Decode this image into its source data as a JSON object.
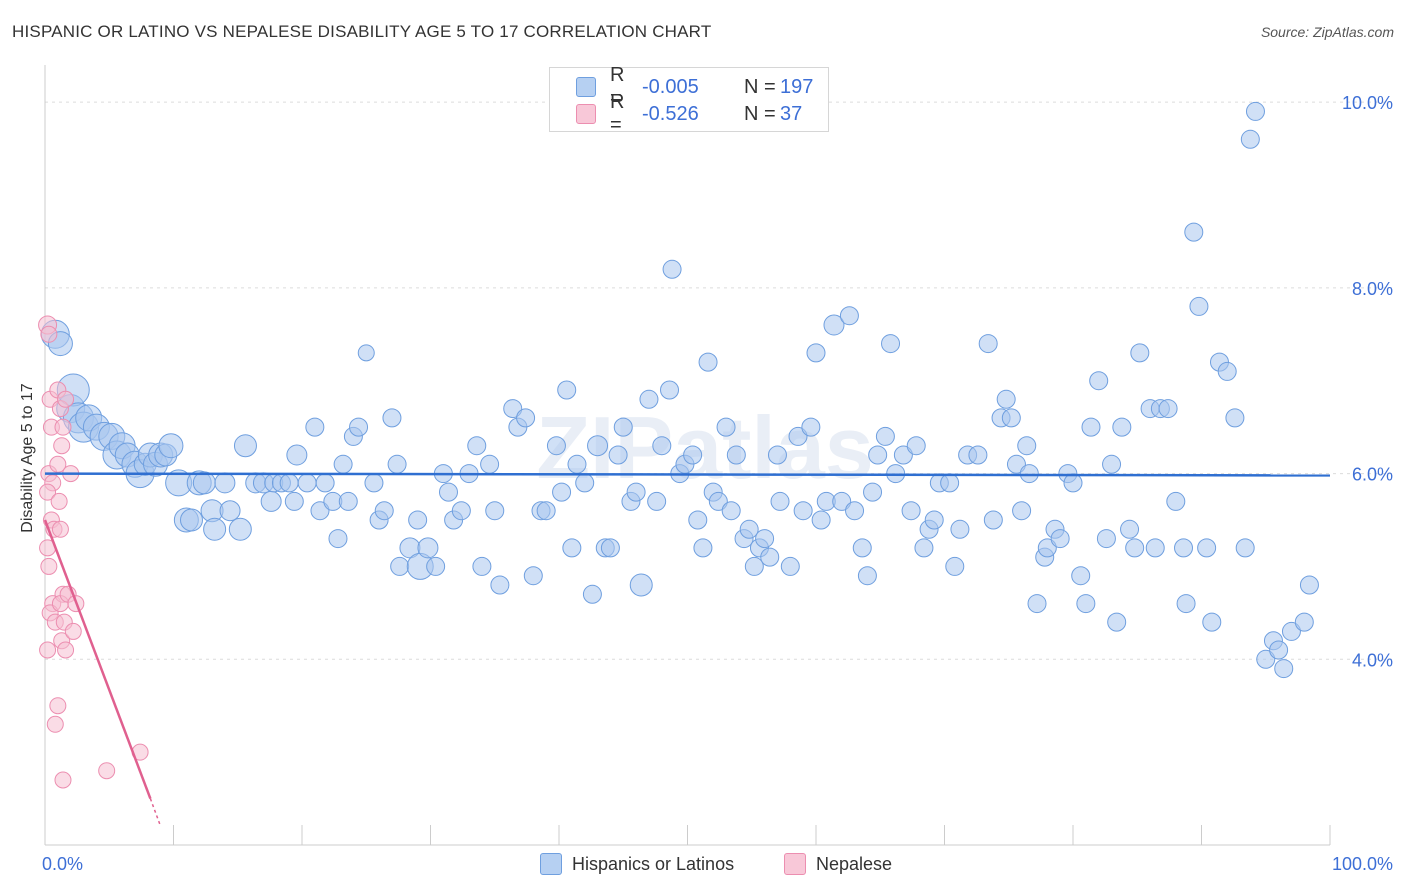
{
  "title": "HISPANIC OR LATINO VS NEPALESE DISABILITY AGE 5 TO 17 CORRELATION CHART",
  "source": "Source: ZipAtlas.com",
  "watermark": "ZIPatlas",
  "legend": {
    "rows": [
      {
        "r_label": "R =",
        "r_value": "-0.005",
        "n_label": "N =",
        "n_value": "197"
      },
      {
        "r_label": "R =",
        "r_value": "-0.526",
        "n_label": "N =",
        "n_value": "37"
      }
    ]
  },
  "bottom_legend": [
    "Hispanics or Latinos",
    "Nepalese"
  ],
  "colors": {
    "blue_fill": "#a9c6ee",
    "blue_stroke": "#6f9fdf",
    "blue_line": "#2f6fd1",
    "pink_fill": "#f6c0d2",
    "pink_stroke": "#ec8eb0",
    "pink_line": "#e0608f",
    "axis_label": "#3d6fd6",
    "grid": "#dcdcdc"
  },
  "chart_data": {
    "type": "scatter",
    "title": "HISPANIC OR LATINO VS NEPALESE DISABILITY AGE 5 TO 17 CORRELATION CHART",
    "xlabel": "",
    "ylabel": "Disability Age 5 to 17",
    "xlim": [
      0,
      100
    ],
    "ylim": [
      2.0,
      10.4
    ],
    "x_tick_labels": [
      "0.0%",
      "100.0%"
    ],
    "y_ticks": [
      4.0,
      6.0,
      8.0,
      10.0
    ],
    "y_tick_labels": [
      "4.0%",
      "6.0%",
      "8.0%",
      "10.0%"
    ],
    "grid": true,
    "legend_position": "top-center",
    "trend_lines": [
      {
        "series": "Hispanics or Latinos",
        "x": [
          0,
          100
        ],
        "y": [
          6.0,
          5.98
        ]
      },
      {
        "series": "Nepalese",
        "x": [
          0,
          8.2
        ],
        "y": [
          5.5,
          2.5
        ],
        "dashed_extension_x": [
          8.2,
          9.0
        ],
        "dashed_extension_y": [
          2.5,
          2.2
        ]
      }
    ],
    "series": [
      {
        "name": "Hispanics or Latinos",
        "points": [
          [
            0.8,
            7.5,
            14
          ],
          [
            1.2,
            7.4,
            12
          ],
          [
            2.0,
            6.7,
            14
          ],
          [
            2.2,
            6.9,
            16
          ],
          [
            2.6,
            6.6,
            15
          ],
          [
            3.0,
            6.5,
            15
          ],
          [
            3.4,
            6.6,
            13
          ],
          [
            4.0,
            6.5,
            13
          ],
          [
            4.6,
            6.4,
            14
          ],
          [
            5.2,
            6.4,
            13
          ],
          [
            5.6,
            6.2,
            14
          ],
          [
            6.0,
            6.3,
            13
          ],
          [
            6.4,
            6.2,
            12
          ],
          [
            7.0,
            6.1,
            13
          ],
          [
            7.4,
            6.0,
            14
          ],
          [
            7.8,
            6.1,
            11
          ],
          [
            8.2,
            6.2,
            12
          ],
          [
            8.6,
            6.1,
            12
          ],
          [
            9.0,
            6.2,
            12
          ],
          [
            9.4,
            6.2,
            11
          ],
          [
            9.8,
            6.3,
            12
          ],
          [
            10.4,
            5.9,
            13
          ],
          [
            11.0,
            5.5,
            12
          ],
          [
            11.4,
            5.5,
            11
          ],
          [
            12.0,
            5.9,
            12
          ],
          [
            12.4,
            5.9,
            11
          ],
          [
            13.0,
            5.6,
            11
          ],
          [
            13.2,
            5.4,
            11
          ],
          [
            14.0,
            5.9,
            10
          ],
          [
            14.4,
            5.6,
            10
          ],
          [
            15.2,
            5.4,
            11
          ],
          [
            15.6,
            6.3,
            11
          ],
          [
            16.4,
            5.9,
            10
          ],
          [
            17.0,
            5.9,
            10
          ],
          [
            17.6,
            5.7,
            10
          ],
          [
            17.8,
            5.9,
            9
          ],
          [
            18.4,
            5.9,
            9
          ],
          [
            19.0,
            5.9,
            9
          ],
          [
            19.4,
            5.7,
            9
          ],
          [
            19.6,
            6.2,
            10
          ],
          [
            20.4,
            5.9,
            9
          ],
          [
            21.0,
            6.5,
            9
          ],
          [
            21.4,
            5.6,
            9
          ],
          [
            21.8,
            5.9,
            9
          ],
          [
            22.4,
            5.7,
            9
          ],
          [
            22.8,
            5.3,
            9
          ],
          [
            23.2,
            6.1,
            9
          ],
          [
            23.6,
            5.7,
            9
          ],
          [
            24.0,
            6.4,
            9
          ],
          [
            24.4,
            6.5,
            9
          ],
          [
            25.0,
            7.3,
            8
          ],
          [
            25.6,
            5.9,
            9
          ],
          [
            26.0,
            5.5,
            9
          ],
          [
            26.4,
            5.6,
            9
          ],
          [
            27.0,
            6.6,
            9
          ],
          [
            27.4,
            6.1,
            9
          ],
          [
            27.6,
            5.0,
            9
          ],
          [
            28.4,
            5.2,
            10
          ],
          [
            29.0,
            5.5,
            9
          ],
          [
            29.2,
            5.0,
            13
          ],
          [
            29.8,
            5.2,
            10
          ],
          [
            30.4,
            5.0,
            9
          ],
          [
            31.0,
            6.0,
            9
          ],
          [
            31.4,
            5.8,
            9
          ],
          [
            31.8,
            5.5,
            9
          ],
          [
            32.4,
            5.6,
            9
          ],
          [
            33.0,
            6.0,
            9
          ],
          [
            33.6,
            6.3,
            9
          ],
          [
            34.0,
            5.0,
            9
          ],
          [
            34.6,
            6.1,
            9
          ],
          [
            35.0,
            5.6,
            9
          ],
          [
            35.4,
            4.8,
            9
          ],
          [
            36.4,
            6.7,
            9
          ],
          [
            36.8,
            6.5,
            9
          ],
          [
            37.4,
            6.6,
            9
          ],
          [
            38.0,
            4.9,
            9
          ],
          [
            38.6,
            5.6,
            9
          ],
          [
            39.0,
            5.6,
            9
          ],
          [
            39.8,
            6.3,
            9
          ],
          [
            40.2,
            5.8,
            9
          ],
          [
            40.6,
            6.9,
            9
          ],
          [
            41.0,
            5.2,
            9
          ],
          [
            41.4,
            6.1,
            9
          ],
          [
            42.0,
            5.9,
            9
          ],
          [
            42.6,
            4.7,
            9
          ],
          [
            43.0,
            6.3,
            10
          ],
          [
            43.6,
            5.2,
            9
          ],
          [
            44.0,
            5.2,
            9
          ],
          [
            44.6,
            6.2,
            9
          ],
          [
            45.0,
            6.5,
            9
          ],
          [
            45.6,
            5.7,
            9
          ],
          [
            46.0,
            5.8,
            9
          ],
          [
            46.4,
            4.8,
            11
          ],
          [
            47.0,
            6.8,
            9
          ],
          [
            47.6,
            5.7,
            9
          ],
          [
            48.0,
            6.3,
            9
          ],
          [
            48.6,
            6.9,
            9
          ],
          [
            48.8,
            8.2,
            9
          ],
          [
            49.4,
            6.0,
            9
          ],
          [
            49.8,
            6.1,
            9
          ],
          [
            50.4,
            6.2,
            9
          ],
          [
            50.8,
            5.5,
            9
          ],
          [
            51.2,
            5.2,
            9
          ],
          [
            51.6,
            7.2,
            9
          ],
          [
            52.0,
            5.8,
            9
          ],
          [
            52.4,
            5.7,
            9
          ],
          [
            53.0,
            6.5,
            9
          ],
          [
            53.4,
            5.6,
            9
          ],
          [
            53.8,
            6.2,
            9
          ],
          [
            54.4,
            5.3,
            9
          ],
          [
            54.8,
            5.4,
            9
          ],
          [
            55.2,
            5.0,
            9
          ],
          [
            55.6,
            5.2,
            9
          ],
          [
            56.0,
            5.3,
            9
          ],
          [
            56.4,
            5.1,
            9
          ],
          [
            57.0,
            6.2,
            9
          ],
          [
            57.2,
            5.7,
            9
          ],
          [
            58.0,
            5.0,
            9
          ],
          [
            58.6,
            6.4,
            9
          ],
          [
            59.0,
            5.6,
            9
          ],
          [
            59.6,
            6.5,
            9
          ],
          [
            60.0,
            7.3,
            9
          ],
          [
            60.4,
            5.5,
            9
          ],
          [
            60.8,
            5.7,
            9
          ],
          [
            61.4,
            7.6,
            10
          ],
          [
            62.0,
            5.7,
            9
          ],
          [
            62.6,
            7.7,
            9
          ],
          [
            63.0,
            5.6,
            9
          ],
          [
            63.6,
            5.2,
            9
          ],
          [
            64.0,
            4.9,
            9
          ],
          [
            64.4,
            5.8,
            9
          ],
          [
            64.8,
            6.2,
            9
          ],
          [
            65.4,
            6.4,
            9
          ],
          [
            65.8,
            7.4,
            9
          ],
          [
            66.2,
            6.0,
            9
          ],
          [
            66.8,
            6.2,
            9
          ],
          [
            67.4,
            5.6,
            9
          ],
          [
            67.8,
            6.3,
            9
          ],
          [
            68.4,
            5.2,
            9
          ],
          [
            68.8,
            5.4,
            9
          ],
          [
            69.2,
            5.5,
            9
          ],
          [
            69.6,
            5.9,
            9
          ],
          [
            70.4,
            5.9,
            9
          ],
          [
            70.8,
            5.0,
            9
          ],
          [
            71.2,
            5.4,
            9
          ],
          [
            71.8,
            6.2,
            9
          ],
          [
            72.6,
            6.2,
            9
          ],
          [
            73.4,
            7.4,
            9
          ],
          [
            73.8,
            5.5,
            9
          ],
          [
            74.4,
            6.6,
            9
          ],
          [
            74.8,
            6.8,
            9
          ],
          [
            75.2,
            6.6,
            9
          ],
          [
            75.6,
            6.1,
            9
          ],
          [
            76.0,
            5.6,
            9
          ],
          [
            76.4,
            6.3,
            9
          ],
          [
            76.6,
            6.0,
            9
          ],
          [
            77.2,
            4.6,
            9
          ],
          [
            77.8,
            5.1,
            9
          ],
          [
            78.0,
            5.2,
            9
          ],
          [
            78.6,
            5.4,
            9
          ],
          [
            79.0,
            5.3,
            9
          ],
          [
            79.6,
            6.0,
            9
          ],
          [
            80.0,
            5.9,
            9
          ],
          [
            80.6,
            4.9,
            9
          ],
          [
            81.0,
            4.6,
            9
          ],
          [
            81.4,
            6.5,
            9
          ],
          [
            82.0,
            7.0,
            9
          ],
          [
            82.6,
            5.3,
            9
          ],
          [
            83.0,
            6.1,
            9
          ],
          [
            83.4,
            4.4,
            9
          ],
          [
            83.8,
            6.5,
            9
          ],
          [
            84.4,
            5.4,
            9
          ],
          [
            84.8,
            5.2,
            9
          ],
          [
            85.2,
            7.3,
            9
          ],
          [
            86.0,
            6.7,
            9
          ],
          [
            86.4,
            5.2,
            9
          ],
          [
            86.8,
            6.7,
            9
          ],
          [
            87.4,
            6.7,
            9
          ],
          [
            88.0,
            5.7,
            9
          ],
          [
            88.6,
            5.2,
            9
          ],
          [
            88.8,
            4.6,
            9
          ],
          [
            89.4,
            8.6,
            9
          ],
          [
            89.8,
            7.8,
            9
          ],
          [
            90.4,
            5.2,
            9
          ],
          [
            90.8,
            4.4,
            9
          ],
          [
            91.4,
            7.2,
            9
          ],
          [
            92.0,
            7.1,
            9
          ],
          [
            92.6,
            6.6,
            9
          ],
          [
            93.4,
            5.2,
            9
          ],
          [
            93.8,
            9.6,
            9
          ],
          [
            94.2,
            9.9,
            9
          ],
          [
            95.0,
            4.0,
            9
          ],
          [
            95.6,
            4.2,
            9
          ],
          [
            96.0,
            4.1,
            9
          ],
          [
            96.4,
            3.9,
            9
          ],
          [
            97.0,
            4.3,
            9
          ],
          [
            98.0,
            4.4,
            9
          ],
          [
            98.4,
            4.8,
            9
          ]
        ]
      },
      {
        "name": "Nepalese",
        "points": [
          [
            0.2,
            7.6,
            9
          ],
          [
            0.3,
            7.5,
            8
          ],
          [
            0.4,
            6.8,
            8
          ],
          [
            0.5,
            6.5,
            8
          ],
          [
            0.3,
            6.0,
            8
          ],
          [
            0.6,
            5.9,
            8
          ],
          [
            0.2,
            5.8,
            8
          ],
          [
            0.5,
            5.5,
            8
          ],
          [
            0.7,
            5.4,
            8
          ],
          [
            0.2,
            5.2,
            8
          ],
          [
            0.3,
            5.0,
            8
          ],
          [
            0.6,
            4.6,
            8
          ],
          [
            0.4,
            4.5,
            8
          ],
          [
            0.8,
            4.4,
            8
          ],
          [
            0.2,
            4.1,
            8
          ],
          [
            1.0,
            6.9,
            8
          ],
          [
            1.2,
            6.7,
            8
          ],
          [
            1.4,
            6.5,
            8
          ],
          [
            1.0,
            6.1,
            8
          ],
          [
            1.3,
            6.3,
            8
          ],
          [
            1.1,
            5.7,
            8
          ],
          [
            1.2,
            5.4,
            8
          ],
          [
            1.4,
            4.7,
            8
          ],
          [
            1.2,
            4.6,
            8
          ],
          [
            1.5,
            4.4,
            8
          ],
          [
            1.3,
            4.2,
            8
          ],
          [
            1.6,
            4.1,
            8
          ],
          [
            1.0,
            3.5,
            8
          ],
          [
            0.8,
            3.3,
            8
          ],
          [
            1.4,
            2.7,
            8
          ],
          [
            2.0,
            6.0,
            8
          ],
          [
            1.8,
            4.7,
            8
          ],
          [
            2.2,
            4.3,
            8
          ],
          [
            1.6,
            6.8,
            8
          ],
          [
            2.4,
            4.6,
            8
          ],
          [
            4.8,
            2.8,
            8
          ],
          [
            7.4,
            3.0,
            8
          ]
        ]
      }
    ]
  }
}
